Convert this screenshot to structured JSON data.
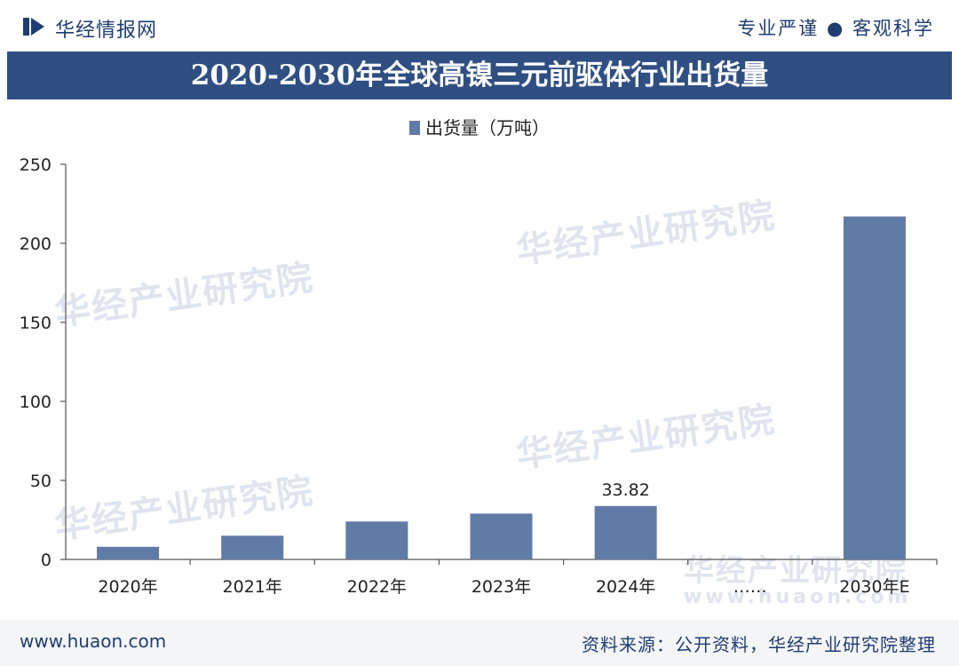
{
  "header": {
    "brand": "华经情报网",
    "slogan": "专业严谨 ● 客观科学",
    "logo_icon": "huajing-logo-icon"
  },
  "chart_title": "2020-2030年全球高镍三元前驱体行业出货量",
  "watermark": "华经产业研究院",
  "watermark_url": "www.huaon.com",
  "footer": {
    "url": "www.huaon.com",
    "source": "资料来源：公开资料，华经产业研究院整理"
  },
  "chart_data": {
    "type": "bar",
    "title": "2020-2030年全球高镍三元前驱体行业出货量",
    "categories": [
      "2020年",
      "2021年",
      "2022年",
      "2023年",
      "2024年",
      "……",
      "2030年E"
    ],
    "series": [
      {
        "name": "出货量（万吨）",
        "values": [
          8,
          15,
          24,
          29,
          33.82,
          null,
          217
        ],
        "color": "#617ba7"
      }
    ],
    "data_labels": [
      "",
      "",
      "",
      "",
      "33.82",
      "",
      ""
    ],
    "xlabel": "",
    "ylabel": "",
    "ylim": [
      0,
      250
    ],
    "yticks": [
      0,
      50,
      100,
      150,
      200,
      250
    ],
    "grid": false,
    "legend": "top-center"
  }
}
